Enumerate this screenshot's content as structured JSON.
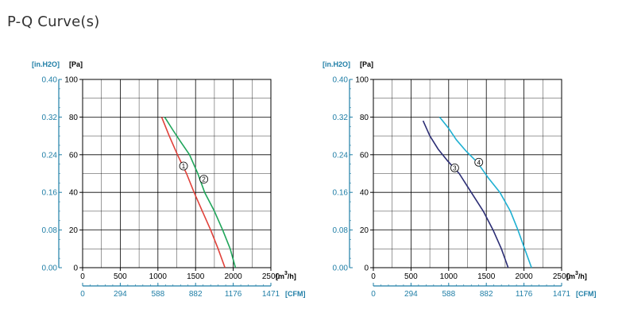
{
  "page": {
    "title": "P-Q Curve(s)"
  },
  "colors": {
    "grid": "#000000",
    "secondary_axis": "#1f7ea6",
    "curve_1": "#e0413a",
    "curve_2": "#1fa55a",
    "curve_3": "#2b2d74",
    "curve_4": "#1fb0d2"
  },
  "chart_data": [
    {
      "type": "line",
      "title": "",
      "xlabel": "[m3/h]",
      "ylabel": "[Pa]",
      "xlim": [
        0,
        2500
      ],
      "ylim": [
        0,
        100
      ],
      "grid": true,
      "x_ticks": [
        "0",
        "500",
        "1000",
        "1500",
        "2000",
        "2500"
      ],
      "y_ticks": [
        "0",
        "20",
        "40",
        "60",
        "80",
        "100"
      ],
      "unit_labels": {
        "left_secondary": "[in.H2O]",
        "left_primary": "[Pa]",
        "x_primary": "[m",
        "x_primary_sup": "3",
        "x_primary_end": "/h]",
        "x_secondary": "[CFM]"
      },
      "y2_ticks": [
        "0.00",
        "0.08",
        "0.16",
        "0.24",
        "0.32",
        "0.40"
      ],
      "x2_ticks": [
        "0",
        "294",
        "588",
        "882",
        "1176",
        "1471"
      ],
      "series": [
        {
          "name": "1",
          "color": "#e0413a",
          "points": [
            [
              1050,
              80
            ],
            [
              1150,
              70
            ],
            [
              1260,
              60
            ],
            [
              1380,
              50
            ],
            [
              1480,
              40
            ],
            [
              1590,
              30
            ],
            [
              1700,
              20
            ],
            [
              1800,
              10
            ],
            [
              1890,
              0
            ]
          ],
          "label_at": [
            1340,
            54
          ]
        },
        {
          "name": "2",
          "color": "#1fa55a",
          "points": [
            [
              1090,
              80
            ],
            [
              1200,
              73
            ],
            [
              1300,
              67
            ],
            [
              1420,
              60
            ],
            [
              1530,
              50
            ],
            [
              1620,
              40
            ],
            [
              1750,
              30
            ],
            [
              1860,
              20
            ],
            [
              1960,
              10
            ],
            [
              2030,
              0
            ]
          ],
          "label_at": [
            1610,
            47
          ]
        }
      ]
    },
    {
      "type": "line",
      "title": "",
      "xlabel": "[m3/h]",
      "ylabel": "[Pa]",
      "xlim": [
        0,
        2500
      ],
      "ylim": [
        0,
        100
      ],
      "grid": true,
      "x_ticks": [
        "0",
        "500",
        "1000",
        "1500",
        "2000",
        "2500"
      ],
      "y_ticks": [
        "0",
        "20",
        "40",
        "60",
        "80",
        "100"
      ],
      "unit_labels": {
        "left_secondary": "[in.H2O]",
        "left_primary": "[Pa]",
        "x_primary": "[m",
        "x_primary_sup": "3",
        "x_primary_end": "/h]",
        "x_secondary": "[CFM]"
      },
      "y2_ticks": [
        "0.00",
        "0.08",
        "0.16",
        "0.24",
        "0.32",
        "0.40"
      ],
      "x2_ticks": [
        "0",
        "294",
        "588",
        "882",
        "1176",
        "1471"
      ],
      "series": [
        {
          "name": "3",
          "color": "#2b2d74",
          "points": [
            [
              660,
              78
            ],
            [
              750,
              70
            ],
            [
              860,
              63
            ],
            [
              980,
              57
            ],
            [
              1140,
              50
            ],
            [
              1300,
              40
            ],
            [
              1460,
              30
            ],
            [
              1590,
              20
            ],
            [
              1700,
              10
            ],
            [
              1790,
              0
            ]
          ],
          "label_at": [
            1080,
            53
          ]
        },
        {
          "name": "4",
          "color": "#1fb0d2",
          "points": [
            [
              880,
              80
            ],
            [
              1000,
              74
            ],
            [
              1100,
              68
            ],
            [
              1230,
              62
            ],
            [
              1380,
              56
            ],
            [
              1520,
              48
            ],
            [
              1680,
              40
            ],
            [
              1820,
              30
            ],
            [
              1920,
              20
            ],
            [
              2010,
              10
            ],
            [
              2100,
              0
            ]
          ],
          "label_at": [
            1400,
            56
          ]
        }
      ]
    }
  ]
}
